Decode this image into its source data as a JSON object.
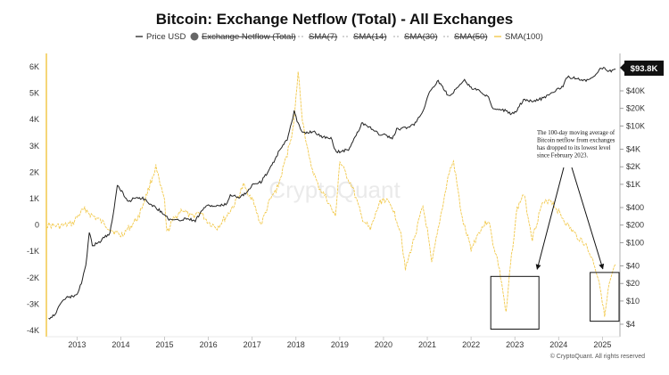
{
  "chart_data": {
    "type": "line",
    "title": "Bitcoin: Exchange Netflow (Total) - All Exchanges",
    "legend_position": "top",
    "legend": [
      {
        "name": "Price USD",
        "marker": "line",
        "color": "#333333",
        "struck": false
      },
      {
        "name": "Exchange Netflow (Total)",
        "marker": "dot",
        "color": "#666666",
        "struck": true
      },
      {
        "name": "SMA(7)",
        "marker": "dash",
        "color": "#bbbbbb",
        "struck": true
      },
      {
        "name": "SMA(14)",
        "marker": "dash",
        "color": "#bbbbbb",
        "struck": true
      },
      {
        "name": "SMA(30)",
        "marker": "dash",
        "color": "#bbbbbb",
        "struck": true
      },
      {
        "name": "SMA(50)",
        "marker": "dash",
        "color": "#bbbbbb",
        "struck": true
      },
      {
        "name": "SMA(100)",
        "marker": "line",
        "color": "#f2c94c",
        "struck": false
      }
    ],
    "x_ticks": [
      "2013",
      "2014",
      "2015",
      "2016",
      "2017",
      "2018",
      "2019",
      "2020",
      "2021",
      "2022",
      "2023",
      "2024",
      "2025"
    ],
    "left_axis": {
      "ticks": [
        "6K",
        "5K",
        "4K",
        "3K",
        "2K",
        "1K",
        "0",
        "-1K",
        "-2K",
        "-3K",
        "-4K"
      ],
      "values": [
        6000,
        5000,
        4000,
        3000,
        2000,
        1000,
        0,
        -1000,
        -2000,
        -3000,
        -4000
      ],
      "ylim": [
        -4000,
        6000
      ]
    },
    "right_axis": {
      "scale": "log",
      "ticks": [
        "$40K",
        "$20K",
        "$10K",
        "$4K",
        "$2K",
        "$1K",
        "$400",
        "$200",
        "$100",
        "$40",
        "$20",
        "$10",
        "$4"
      ],
      "values": [
        40000,
        20000,
        10000,
        4000,
        2000,
        1000,
        400,
        200,
        100,
        40,
        20,
        10,
        4
      ],
      "current_label": "$93.8K"
    },
    "x_range": [
      2012.3,
      2025.4
    ],
    "series": [
      {
        "name": "Price USD",
        "color": "#222222",
        "x": [
          2012.35,
          2012.5,
          2012.7,
          2012.9,
          2013.0,
          2013.1,
          2013.2,
          2013.28,
          2013.35,
          2013.5,
          2013.6,
          2013.75,
          2013.85,
          2013.92,
          2014.0,
          2014.1,
          2014.2,
          2014.3,
          2014.5,
          2014.7,
          2014.9,
          2015.0,
          2015.1,
          2015.3,
          2015.5,
          2015.7,
          2015.9,
          2016.0,
          2016.2,
          2016.4,
          2016.5,
          2016.7,
          2016.9,
          2017.0,
          2017.2,
          2017.4,
          2017.5,
          2017.6,
          2017.7,
          2017.8,
          2017.9,
          2017.96,
          2018.0,
          2018.1,
          2018.2,
          2018.4,
          2018.6,
          2018.8,
          2018.9,
          2019.0,
          2019.2,
          2019.4,
          2019.5,
          2019.7,
          2019.9,
          2020.0,
          2020.2,
          2020.3,
          2020.5,
          2020.7,
          2020.9,
          2021.0,
          2021.1,
          2021.25,
          2021.4,
          2021.5,
          2021.7,
          2021.85,
          2022.0,
          2022.2,
          2022.4,
          2022.5,
          2022.7,
          2022.9,
          2023.0,
          2023.2,
          2023.4,
          2023.6,
          2023.8,
          2023.95,
          2024.1,
          2024.2,
          2024.4,
          2024.6,
          2024.8,
          2024.95,
          2025.05,
          2025.2,
          2025.3
        ],
        "y": [
          5,
          6,
          11,
          12,
          13,
          20,
          40,
          150,
          90,
          100,
          120,
          140,
          400,
          1000,
          800,
          600,
          500,
          600,
          580,
          450,
          350,
          310,
          250,
          240,
          260,
          240,
          400,
          430,
          420,
          450,
          650,
          610,
          740,
          1000,
          1100,
          1800,
          2500,
          3500,
          4500,
          6000,
          11000,
          18000,
          14000,
          9000,
          7500,
          8000,
          6500,
          6300,
          3700,
          3600,
          4000,
          7500,
          11000,
          9500,
          7200,
          7200,
          6000,
          8700,
          9200,
          10800,
          18000,
          30000,
          45000,
          58000,
          40000,
          32000,
          47000,
          60000,
          45000,
          40000,
          30000,
          20000,
          19500,
          16500,
          17000,
          28000,
          27000,
          29000,
          35000,
          42000,
          48000,
          70000,
          65000,
          60000,
          68000,
          98000,
          96000,
          85000,
          93800
        ]
      },
      {
        "name": "SMA(100)",
        "color": "#f2c94c",
        "x": [
          2012.3,
          2012.6,
          2012.9,
          2013.0,
          2013.1,
          2013.2,
          2013.3,
          2013.5,
          2013.8,
          2014.0,
          2014.2,
          2014.4,
          2014.6,
          2014.8,
          2014.9,
          2015.0,
          2015.05,
          2015.2,
          2015.4,
          2015.6,
          2015.8,
          2016.0,
          2016.2,
          2016.4,
          2016.6,
          2016.8,
          2017.0,
          2017.2,
          2017.4,
          2017.6,
          2017.8,
          2017.95,
          2018.05,
          2018.15,
          2018.3,
          2018.5,
          2018.7,
          2018.9,
          2019.0,
          2019.3,
          2019.5,
          2019.7,
          2019.9,
          2020.0,
          2020.2,
          2020.4,
          2020.5,
          2020.7,
          2020.9,
          2021.0,
          2021.1,
          2021.3,
          2021.5,
          2021.6,
          2021.8,
          2022.0,
          2022.2,
          2022.4,
          2022.5,
          2022.6,
          2022.7,
          2022.8,
          2022.9,
          2023.05,
          2023.2,
          2023.4,
          2023.6,
          2023.8,
          2024.0,
          2024.2,
          2024.4,
          2024.6,
          2024.8,
          2024.95,
          2025.05,
          2025.15,
          2025.3
        ],
        "y": [
          0,
          -50,
          50,
          300,
          500,
          600,
          400,
          200,
          -200,
          -400,
          -100,
          300,
          1200,
          2200,
          1500,
          900,
          -300,
          200,
          600,
          300,
          500,
          100,
          -100,
          300,
          800,
          1500,
          1000,
          0,
          900,
          1500,
          2700,
          3800,
          5800,
          4000,
          2500,
          1500,
          1000,
          300,
          2400,
          1400,
          300,
          -200,
          800,
          1000,
          700,
          -300,
          -1700,
          -500,
          700,
          -200,
          -1500,
          300,
          2000,
          2400,
          200,
          -900,
          -200,
          200,
          -700,
          -1300,
          -2200,
          -3400,
          -1500,
          600,
          1200,
          -500,
          700,
          1000,
          500,
          0,
          -400,
          -700,
          -1400,
          -2300,
          -3500,
          -2300,
          -1500
        ]
      }
    ],
    "annotations": {
      "text_lines": [
        "The 100-day moving average of",
        "Bitcoin netflow from exchanges",
        "has dropped to its lowest level",
        "since February 2023."
      ],
      "boxes": [
        {
          "x_range": [
            2022.45,
            2023.55
          ],
          "y_range": [
            -3950,
            -1950
          ]
        },
        {
          "x_range": [
            2024.72,
            2025.38
          ],
          "y_range": [
            -3650,
            -1800
          ]
        }
      ]
    },
    "watermark": "CryptoQuant",
    "footer": "© CryptoQuant. All rights reserved"
  }
}
